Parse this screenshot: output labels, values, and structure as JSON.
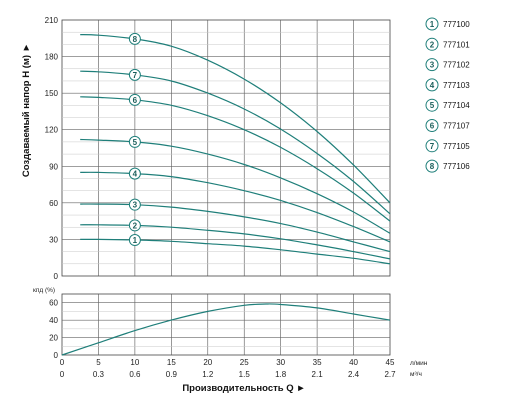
{
  "chart_data": [
    {
      "type": "line",
      "ylabel": "Создаваемый напор H (м) ►",
      "ylim": [
        0,
        210
      ],
      "yticks": [
        0,
        30,
        60,
        90,
        120,
        150,
        180,
        210
      ],
      "xlim": [
        0,
        45
      ],
      "grid": true,
      "legend_position": "right",
      "line_color": "#1f7f7a",
      "x": [
        2.5,
        5,
        10,
        15,
        20,
        25,
        30,
        35,
        40,
        45
      ],
      "series": [
        {
          "name": "777100",
          "marker": "1",
          "marker_x": 10,
          "values": [
            30,
            30,
            29.5,
            28.5,
            26.5,
            24.5,
            21.5,
            18,
            14.5,
            10
          ]
        },
        {
          "name": "777101",
          "marker": "2",
          "marker_x": 10,
          "values": [
            42,
            42,
            41.5,
            40,
            37.5,
            34.5,
            30.5,
            25.5,
            20,
            14
          ]
        },
        {
          "name": "777102",
          "marker": "3",
          "marker_x": 10,
          "values": [
            59,
            59,
            58.5,
            56.5,
            53,
            48.5,
            43,
            36,
            28,
            20
          ]
        },
        {
          "name": "777103",
          "marker": "4",
          "marker_x": 10,
          "values": [
            85,
            85,
            84,
            81.5,
            76.5,
            70,
            62,
            52,
            40.5,
            28
          ]
        },
        {
          "name": "777104",
          "marker": "5",
          "marker_x": 10,
          "values": [
            112,
            111.5,
            110,
            106.5,
            100,
            91.5,
            80.5,
            67.5,
            52.5,
            35
          ]
        },
        {
          "name": "777107",
          "marker": "6",
          "marker_x": 10,
          "values": [
            147,
            146.5,
            144.5,
            140,
            131.5,
            120,
            105.5,
            88,
            68,
            45
          ]
        },
        {
          "name": "777105",
          "marker": "7",
          "marker_x": 10,
          "values": [
            168,
            167.5,
            165,
            160,
            150,
            137,
            120.5,
            100.5,
            77.5,
            51
          ]
        },
        {
          "name": "777106",
          "marker": "8",
          "marker_x": 10,
          "values": [
            198,
            197.5,
            194.5,
            188.5,
            177,
            161.5,
            142,
            118.5,
            91,
            60
          ]
        }
      ]
    },
    {
      "type": "line",
      "ylabel": "кпд (%)",
      "ylim": [
        0,
        70
      ],
      "yticks": [
        0,
        20,
        40,
        60
      ],
      "xlim": [
        0,
        45
      ],
      "grid": true,
      "line_color": "#1f7f7a",
      "x": [
        0,
        5,
        10,
        15,
        20,
        25,
        28,
        30,
        35,
        40,
        45
      ],
      "series": [
        {
          "values": [
            0,
            14,
            28,
            40,
            50,
            57,
            58.5,
            58,
            54,
            47,
            40
          ]
        }
      ]
    }
  ],
  "x_axis": {
    "title": "Производительность Q ►",
    "primary_ticks": [
      "0",
      "5",
      "10",
      "15",
      "20",
      "25",
      "30",
      "35",
      "40",
      "45"
    ],
    "primary_unit": "л/мин",
    "secondary_ticks": [
      "0",
      "0.3",
      "0.6",
      "0.9",
      "1.2",
      "1.5",
      "1.8",
      "2.1",
      "2.4",
      "2.7"
    ],
    "secondary_unit": "м³/ч"
  },
  "legend": [
    {
      "marker": "1",
      "label": "777100"
    },
    {
      "marker": "2",
      "label": "777101"
    },
    {
      "marker": "3",
      "label": "777102"
    },
    {
      "marker": "4",
      "label": "777103"
    },
    {
      "marker": "5",
      "label": "777104"
    },
    {
      "marker": "6",
      "label": "777107"
    },
    {
      "marker": "7",
      "label": "777105"
    },
    {
      "marker": "8",
      "label": "777106"
    }
  ]
}
